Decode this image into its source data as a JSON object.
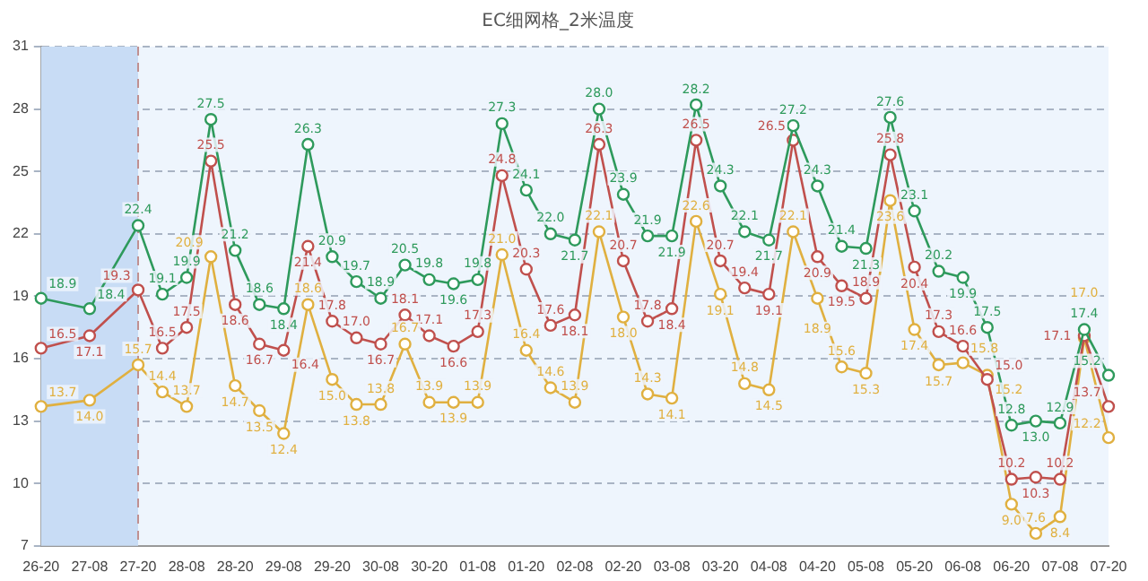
{
  "chart_data": {
    "type": "line",
    "title": "EC细网格_2米温度",
    "categories": [
      "26-20",
      null,
      "27-08",
      null,
      "27-20",
      null,
      "28-08",
      null,
      "28-20",
      null,
      "29-08",
      null,
      "29-20",
      null,
      "30-08",
      null,
      "30-20",
      null,
      "01-08",
      null,
      "01-20",
      null,
      "02-08",
      null,
      "02-20",
      null,
      "03-08",
      null,
      "03-20",
      null,
      "04-08",
      null,
      "04-20",
      null,
      "05-08",
      null,
      "05-20",
      null,
      "06-08",
      null,
      "06-20",
      null,
      "07-08",
      null,
      "07-20"
    ],
    "series": [
      {
        "color": "#2e9a5c",
        "values": [
          18.9,
          null,
          18.4,
          null,
          22.4,
          19.1,
          19.9,
          27.5,
          21.2,
          18.6,
          18.4,
          26.3,
          20.9,
          19.7,
          18.9,
          20.5,
          19.8,
          19.6,
          19.8,
          27.3,
          24.1,
          22.0,
          21.7,
          28.0,
          23.9,
          21.9,
          21.9,
          28.2,
          24.3,
          22.1,
          21.7,
          27.2,
          24.3,
          21.4,
          21.3,
          27.6,
          23.1,
          20.2,
          19.9,
          17.5,
          12.8,
          13.0,
          12.9,
          17.4,
          15.2
        ],
        "value_labels": [
          "18.9",
          null,
          "18.4",
          null,
          "22.4",
          "19.1",
          "19.9",
          "27.5",
          "21.2",
          "18.6",
          "18.4",
          "26.3",
          "20.9",
          "19.7",
          "18.9",
          "20.5",
          "19.8",
          "19.6",
          "19.8",
          "27.3",
          "24.1",
          "22.0",
          "21.7",
          "28.0",
          "23.9",
          "21.9",
          "21.9",
          "28.2",
          "24.3",
          "22.1",
          "21.7",
          "27.2",
          "24.3",
          "21.4",
          "21.3",
          "27.6",
          "23.1",
          "20.2",
          "19.9",
          "17.5",
          "12.8",
          "13.0",
          "12.9",
          "17.4",
          "15.2"
        ]
      },
      {
        "color": "#c0504d",
        "values": [
          16.5,
          null,
          17.1,
          null,
          19.3,
          16.5,
          17.5,
          25.5,
          18.6,
          16.7,
          16.4,
          21.4,
          17.8,
          17.0,
          16.7,
          18.1,
          17.1,
          16.6,
          17.3,
          24.8,
          20.3,
          17.6,
          18.1,
          26.3,
          20.7,
          17.8,
          18.4,
          26.5,
          20.7,
          19.4,
          19.1,
          26.5,
          20.9,
          19.5,
          18.9,
          25.8,
          20.4,
          17.3,
          16.6,
          15.0,
          10.2,
          10.3,
          10.2,
          17.1,
          13.7
        ],
        "value_labels": [
          "16.5",
          null,
          "17.1",
          null,
          "19.3",
          "16.5",
          "17.5",
          "25.5",
          "18.6",
          "16.7",
          "16.4",
          "21.4",
          "17.8",
          "17.0",
          "16.7",
          "18.1",
          "17.1",
          "16.6",
          "17.3",
          "24.8",
          "20.3",
          "17.6",
          "18.1",
          "26.3",
          "20.7",
          "17.8",
          "18.4",
          "26.5",
          "20.7",
          "19.4",
          "19.1",
          "26.5",
          "20.9",
          "19.5",
          "18.9",
          "25.8",
          "20.4",
          "17.3",
          "16.6",
          "15.0",
          "10.2",
          "10.3",
          "10.2",
          "17.1",
          "13.7"
        ]
      },
      {
        "color": "#e0b040",
        "values": [
          13.7,
          null,
          14.0,
          null,
          15.7,
          14.4,
          13.7,
          20.9,
          14.7,
          13.5,
          12.4,
          18.6,
          15.0,
          13.8,
          13.8,
          16.7,
          13.9,
          13.9,
          13.9,
          21.0,
          16.4,
          14.6,
          13.9,
          22.1,
          18.0,
          14.3,
          14.1,
          22.6,
          19.1,
          14.8,
          14.5,
          22.1,
          18.9,
          15.6,
          15.3,
          23.6,
          17.4,
          15.7,
          15.8,
          15.2,
          9.0,
          7.6,
          8.4,
          17.0,
          12.2
        ],
        "value_labels": [
          "13.7",
          null,
          "14.0",
          null,
          "15.7",
          "14.4",
          "13.7",
          "20.9",
          "14.7",
          "13.5",
          "12.4",
          "18.6",
          "15.0",
          "13.8",
          "13.8",
          "16.7",
          "13.9",
          "13.9",
          "13.9",
          "21.0",
          "16.4",
          "14.6",
          "13.9",
          "22.1",
          "18.0",
          "14.3",
          "14.1",
          "22.6",
          "19.1",
          "14.8",
          "14.5",
          "22.1",
          "18.9",
          "15.6",
          "15.3",
          "23.6",
          "17.4",
          "15.7",
          "15.8",
          "15.2",
          "9.0",
          "7.6",
          "8.4",
          "17.0",
          "12.2"
        ]
      }
    ],
    "ylim": [
      7,
      31
    ],
    "yticks": [
      7,
      10,
      13,
      16,
      19,
      22,
      25,
      28,
      31
    ],
    "bands": [
      {
        "axis": "x",
        "from": "26-20",
        "to": "27-20",
        "color": "#c8dcf5"
      }
    ],
    "ref_lines": [
      {
        "axis": "x",
        "value": "27-20",
        "color": "#c09090",
        "line_style": "dashed"
      }
    ],
    "grid": "y",
    "marker": "circle",
    "legend": false
  }
}
